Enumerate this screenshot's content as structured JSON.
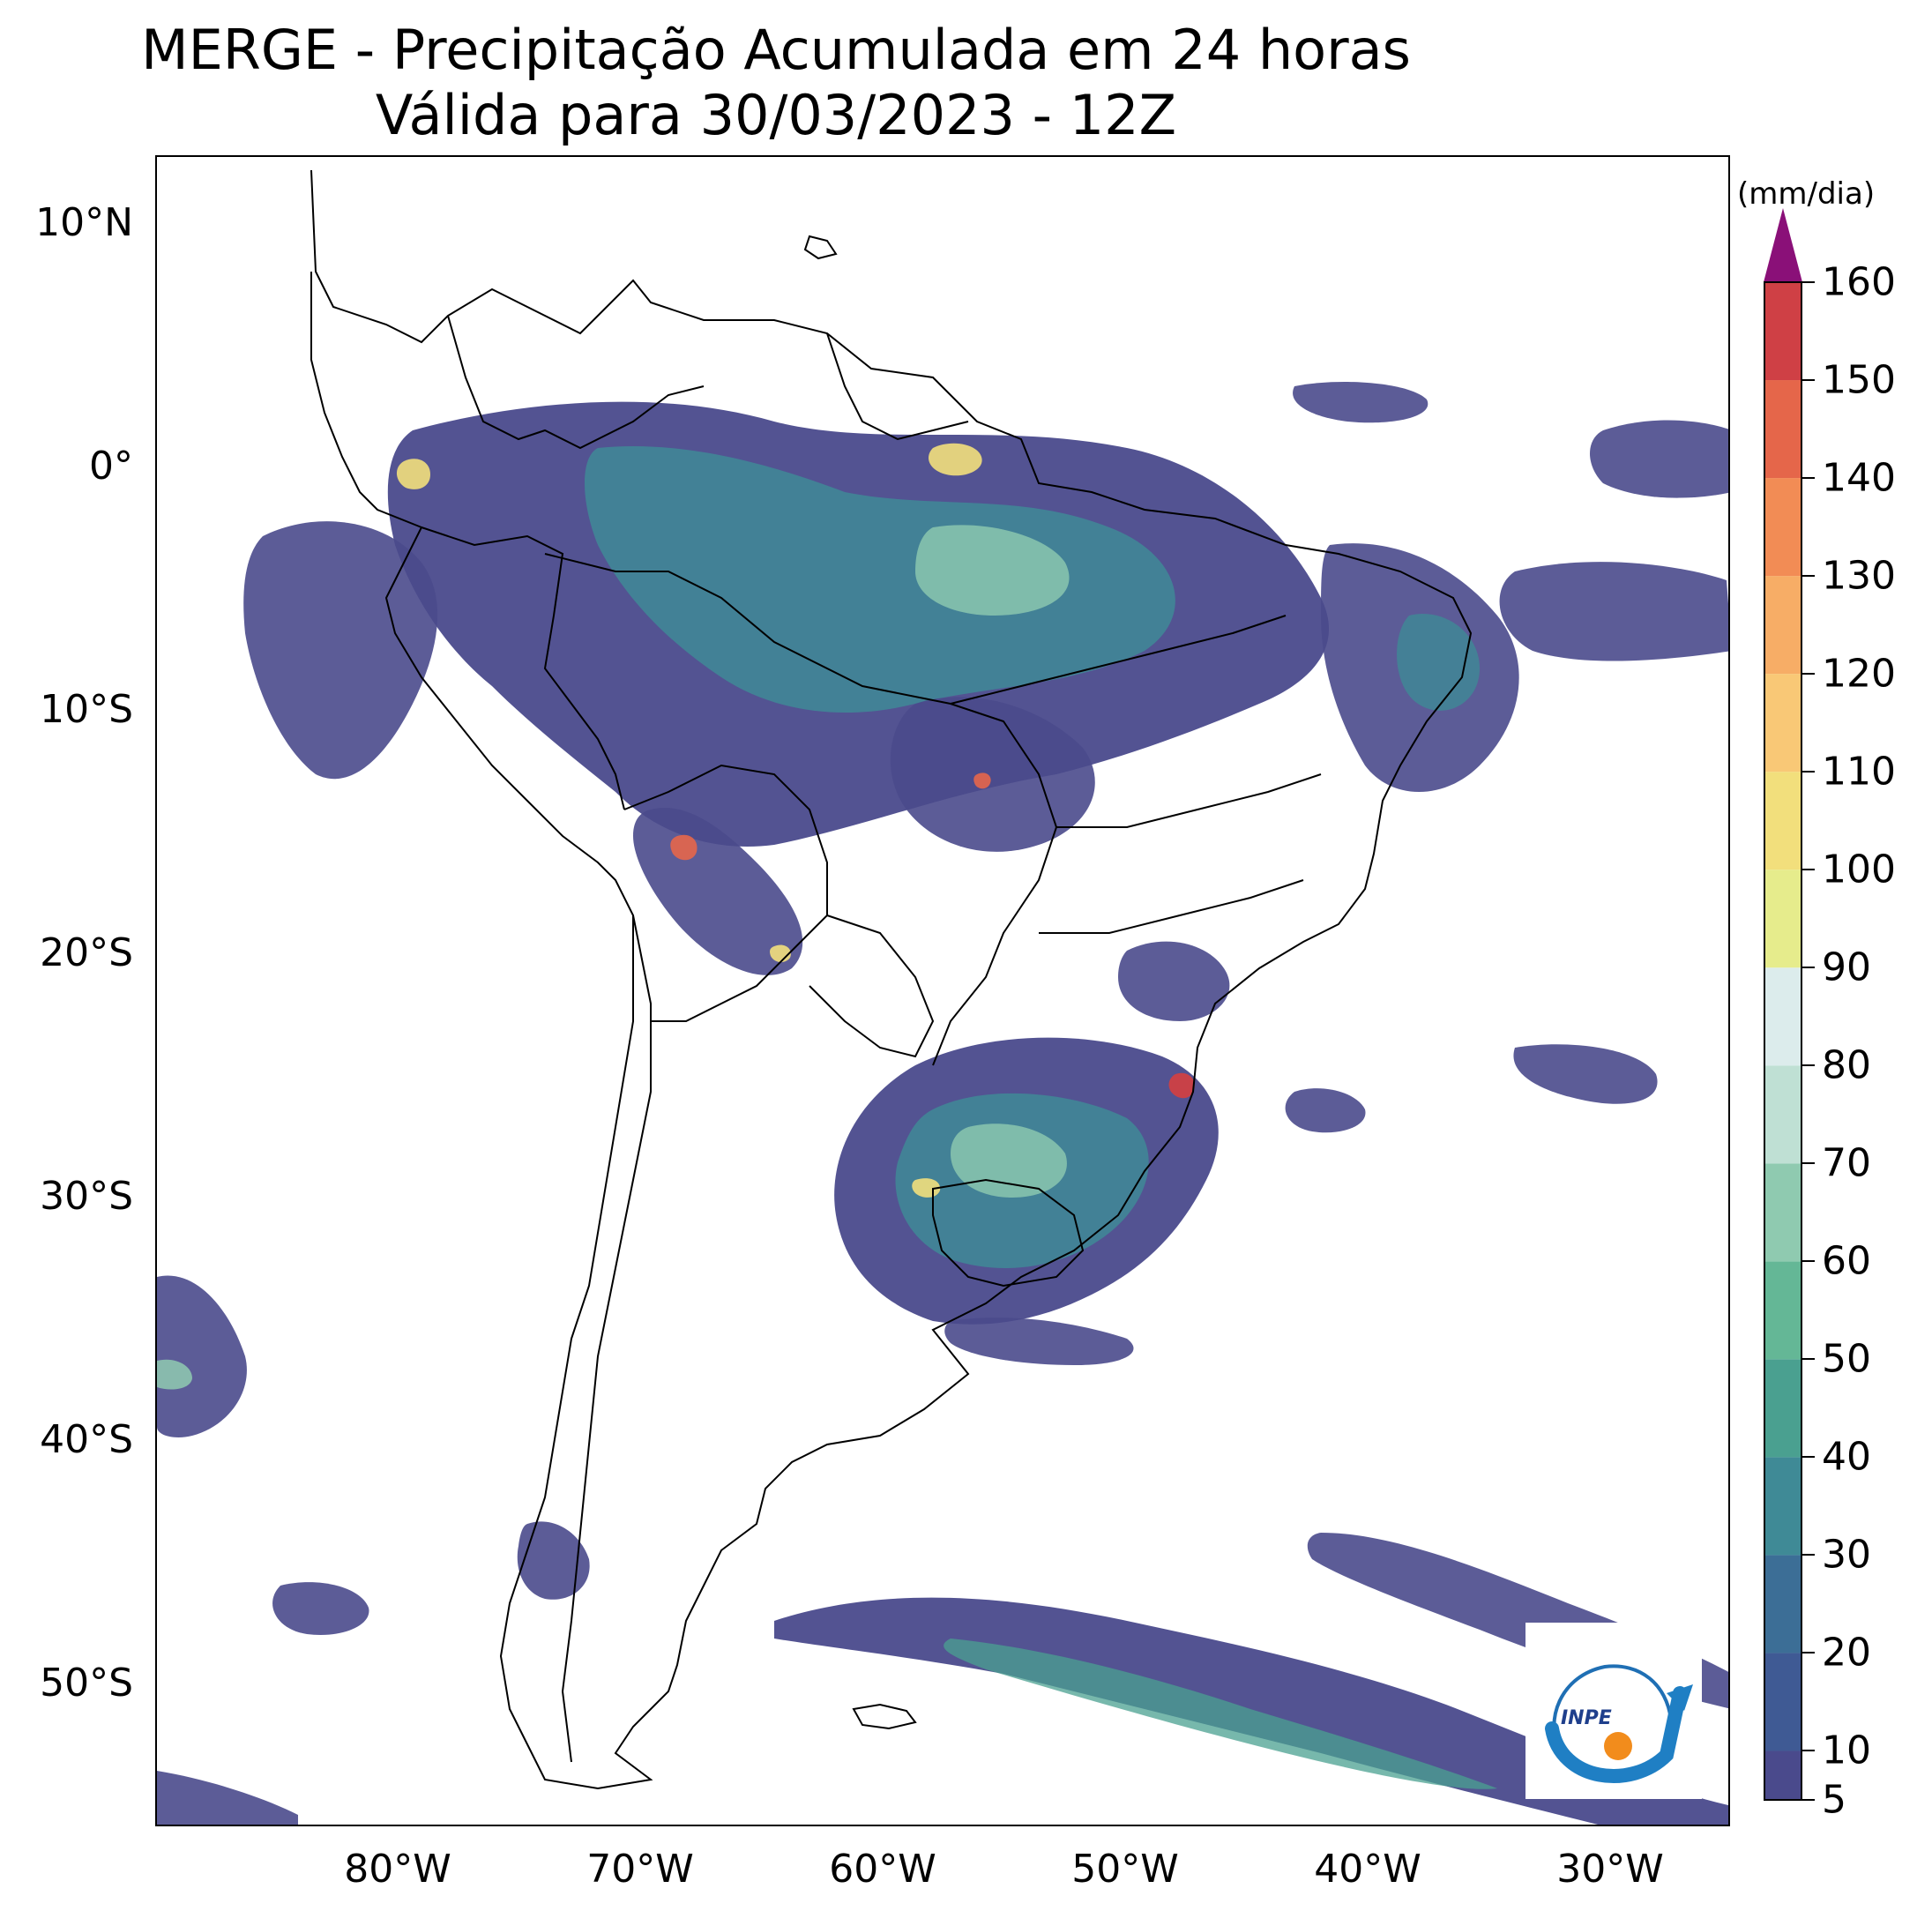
{
  "title": {
    "line1": "MERGE - Precipitação Acumulada em 24 horas",
    "line2": "Válida para 30/03/2023 - 12Z"
  },
  "map": {
    "lon_range": [
      -90,
      -25
    ],
    "lat_range": [
      -56,
      13
    ],
    "lat_labels": [
      "10°N",
      "0°",
      "10°S",
      "20°S",
      "30°S",
      "40°S",
      "50°S"
    ],
    "lon_labels": [
      "80°W",
      "70°W",
      "60°W",
      "50°W",
      "40°W",
      "30°W"
    ],
    "background_color": "#ffffff",
    "coastline_color": "#000000"
  },
  "colorbar": {
    "unit": "(mm/dia)",
    "ticks": [
      "5",
      "10",
      "20",
      "30",
      "40",
      "50",
      "60",
      "70",
      "80",
      "90",
      "100",
      "110",
      "120",
      "130",
      "140",
      "150",
      "160"
    ],
    "range": [
      5,
      160
    ],
    "extend": "max",
    "colors": [
      "#4a4a8c",
      "#3f5a94",
      "#3c6e96",
      "#3f8a96",
      "#4aa090",
      "#64b796",
      "#8fcab0",
      "#bfe0d4",
      "#dcecec",
      "#e6ec8c",
      "#f2df7c",
      "#f9c876",
      "#f7ad66",
      "#f28c55",
      "#e5664a",
      "#cf4045",
      "#b52a4c",
      "#8a1078"
    ]
  },
  "logo": {
    "name": "INPE logo",
    "text": "INPE"
  }
}
